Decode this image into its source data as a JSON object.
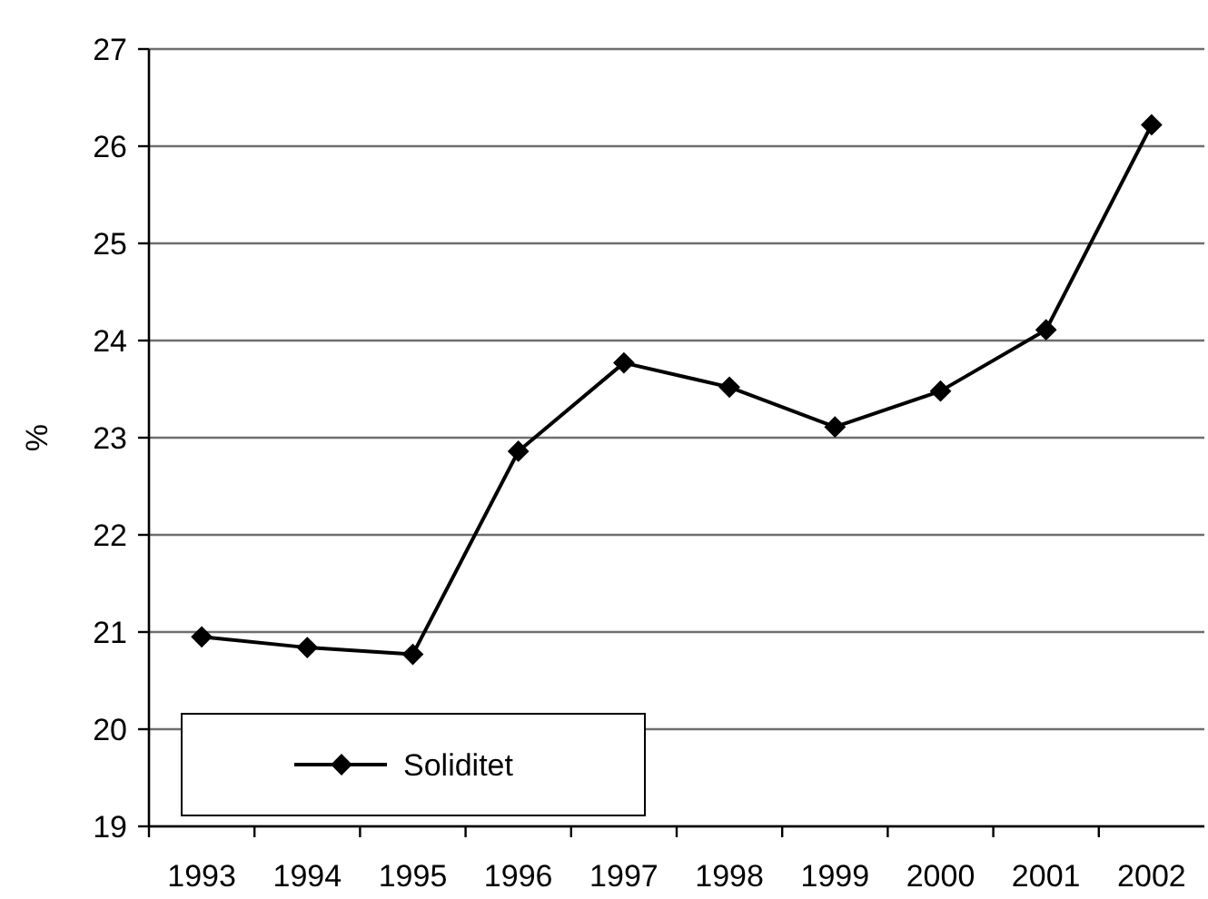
{
  "chart_data": {
    "type": "line",
    "ylabel": "%",
    "categories": [
      "1993",
      "1994",
      "1995",
      "1996",
      "1997",
      "1998",
      "1999",
      "2000",
      "2001",
      "2002"
    ],
    "series": [
      {
        "name": "Soliditet",
        "color": "#000000",
        "values": [
          20.95,
          20.84,
          20.77,
          22.86,
          23.77,
          23.52,
          23.11,
          23.48,
          24.11,
          26.22
        ]
      }
    ],
    "ylim": [
      19,
      27
    ],
    "yticks": [
      19,
      20,
      21,
      22,
      23,
      24,
      25,
      26,
      27
    ],
    "grid": "y",
    "legend": "bottom left",
    "marker": "diamond",
    "line_style": "solid"
  }
}
